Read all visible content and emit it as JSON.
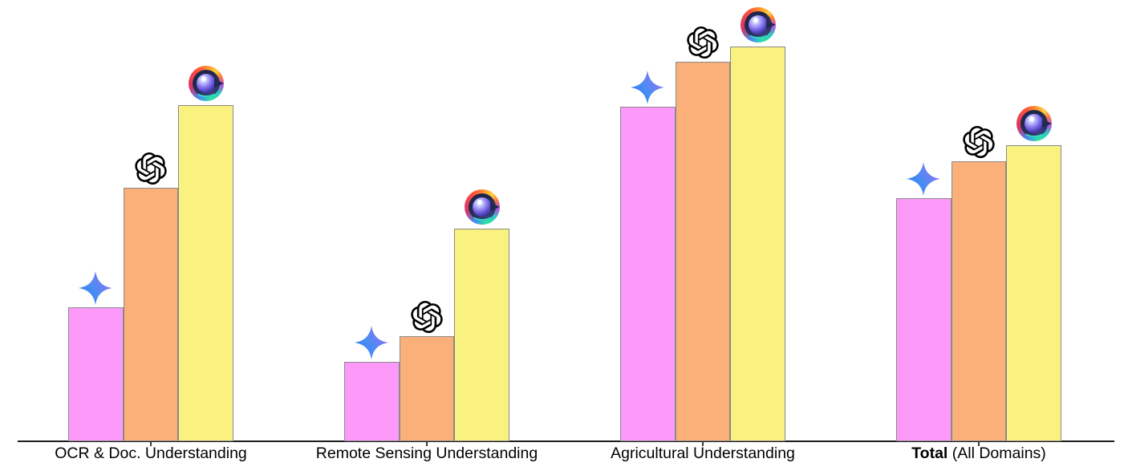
{
  "chart_data": {
    "type": "bar",
    "title": "",
    "categories": [
      {
        "bold": "",
        "rest": "OCR & Doc. Understanding"
      },
      {
        "bold": "",
        "rest": "Remote Sensing Understanding"
      },
      {
        "bold": "",
        "rest": "Agricultural Understanding"
      },
      {
        "bold": "Total",
        "rest": " (All Domains)"
      }
    ],
    "series": [
      {
        "name": "gemini-sparkle",
        "icon": "gemini-sparkle-icon",
        "color": "#fd9af9",
        "values": [
          30.4,
          18.0,
          75.8,
          55.1
        ]
      },
      {
        "name": "openai-gpt",
        "icon": "openai-icon",
        "color": "#fbaf79",
        "values": [
          57.5,
          23.8,
          86.0,
          63.5
        ]
      },
      {
        "name": "rainbow-eye",
        "icon": "rainbow-eye-icon",
        "color": "#faf27e",
        "values": [
          76.2,
          48.2,
          89.5,
          67.1
        ]
      }
    ],
    "value_axis": {
      "visible": false,
      "range": [
        0,
        100
      ]
    },
    "grid": false,
    "legend": "none (model icons shown above bars)",
    "bar_border_color": "#8a8a8a",
    "axis_line_color": "#1c1c1c",
    "background_color": "#ffffff",
    "sparkle_gradient": [
      "#2e78f0",
      "#4b8df5",
      "#9d6cf0"
    ]
  }
}
